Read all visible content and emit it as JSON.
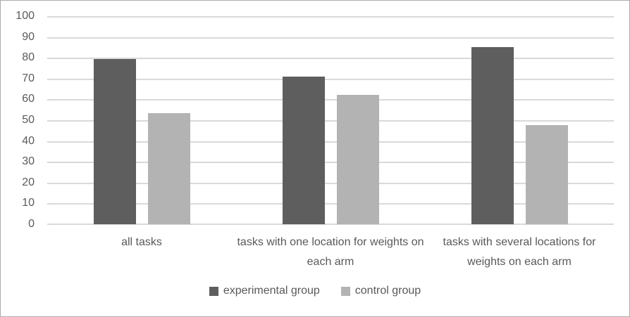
{
  "chart_data": {
    "type": "bar",
    "title": "",
    "xlabel": "",
    "ylabel": "",
    "categories": [
      "all tasks",
      "tasks with one location for weights on each arm",
      "tasks with several locations for weights on each arm"
    ],
    "series": [
      {
        "name": "experimental group",
        "color": "#5e5e5e",
        "values": [
          79.5,
          71,
          85.3
        ]
      },
      {
        "name": "control group",
        "color": "#b3b3b3",
        "values": [
          53.5,
          62,
          47.5
        ]
      }
    ],
    "ylim": [
      0,
      100
    ],
    "ytick_step": 10,
    "yticks": [
      0,
      10,
      20,
      30,
      40,
      50,
      60,
      70,
      80,
      90,
      100
    ],
    "grid": true,
    "gridline_color": "#d9d9d9",
    "axis_text_color": "#595959",
    "legend_position": "bottom",
    "frame_border_color": "#ababab",
    "background_color": "#ffffff"
  }
}
